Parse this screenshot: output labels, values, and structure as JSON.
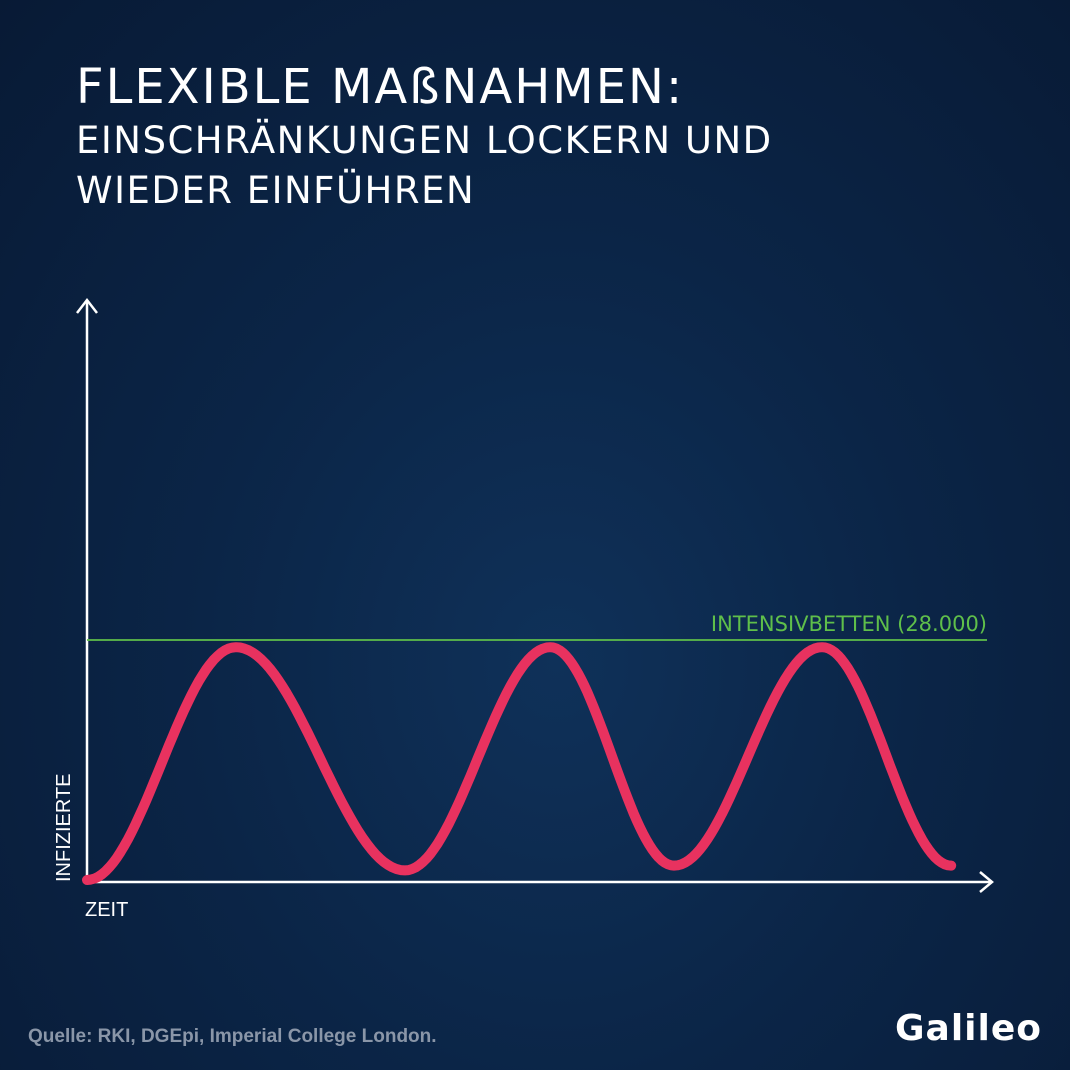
{
  "header": {
    "title": "FLEXIBLE MAßNAHMEN:",
    "subtitle_line1": "EINSCHRÄNKUNGEN LOCKERN UND",
    "subtitle_line2": "WIEDER EINFÜHREN"
  },
  "chart_data": {
    "type": "line",
    "xlabel": "ZEIT",
    "ylabel": "INFIZIERTE",
    "xlim": [
      0,
      100
    ],
    "ylim": [
      0,
      100
    ],
    "reference_line": {
      "label": "INTENSIVBETTEN (28.000)",
      "value": 100,
      "color": "#5fbf4a"
    },
    "series": [
      {
        "color": "#e8325f",
        "x": [
          0,
          16.5,
          35.2,
          51.3,
          65.0,
          81.4,
          95.7
        ],
        "y": [
          0,
          97,
          4,
          97,
          6,
          97,
          6
        ]
      }
    ],
    "grid": false
  },
  "footer": {
    "source": "Quelle: RKI, DGEpi, Imperial College London.",
    "logo": "Galileo"
  },
  "colors": {
    "axis": "#ffffff",
    "curve": "#e8325f",
    "reference": "#5fbf4a"
  }
}
